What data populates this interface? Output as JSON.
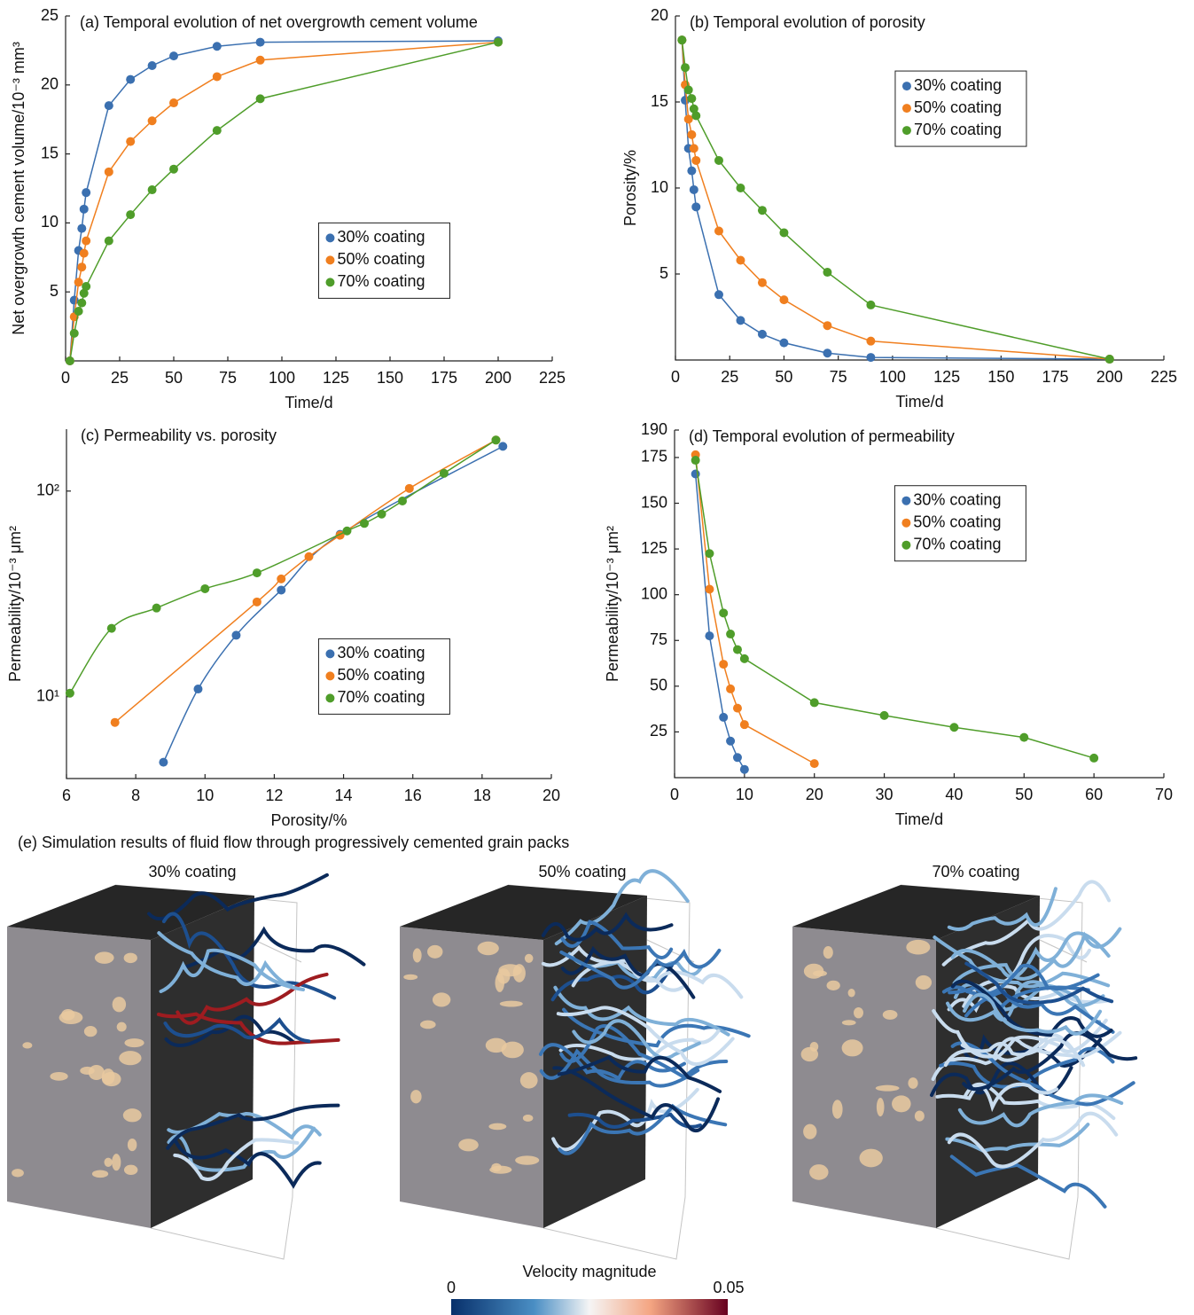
{
  "chart_data": [
    {
      "type": "line",
      "title": "(a) Temporal evolution of net overgrowth cement volume",
      "x_label": "Time/d",
      "y_label": "Net overgrowth cement volume/10⁻³ mm³",
      "x": [
        2,
        4,
        6,
        7.5,
        8.5,
        9.5,
        20,
        30,
        40,
        50,
        70,
        90,
        200
      ],
      "series": [
        {
          "name": "30% coating",
          "color": "#3b70b0",
          "values": [
            0,
            4.4,
            8.0,
            9.6,
            11.0,
            12.2,
            18.5,
            20.4,
            21.4,
            22.1,
            22.8,
            23.1,
            23.2
          ]
        },
        {
          "name": "50% coating",
          "color": "#f07f1f",
          "values": [
            0,
            3.2,
            5.7,
            6.8,
            7.8,
            8.7,
            13.7,
            15.9,
            17.4,
            18.7,
            20.6,
            21.8,
            23.1
          ]
        },
        {
          "name": "70% coating",
          "color": "#4f9d2a",
          "values": [
            0,
            2.0,
            3.6,
            4.2,
            4.9,
            5.4,
            8.7,
            10.6,
            12.4,
            13.9,
            16.7,
            19.0,
            23.1
          ]
        }
      ],
      "xlim": [
        0,
        225
      ],
      "xticks": [
        0,
        25,
        50,
        75,
        100,
        125,
        150,
        175,
        200,
        225
      ],
      "ylim": [
        0,
        25
      ],
      "yticks": [
        5,
        10,
        15,
        20,
        25
      ],
      "legend": "lower center"
    },
    {
      "type": "line",
      "title": "(b) Temporal evolution of porosity",
      "x_label": "Time/d",
      "y_label": "Porosity/%",
      "x": [
        3,
        4.5,
        6,
        7.5,
        8.5,
        9.5,
        20,
        30,
        40,
        50,
        70,
        90,
        200
      ],
      "series": [
        {
          "name": "30% coating",
          "color": "#3b70b0",
          "values": [
            18.6,
            15.1,
            12.3,
            11.0,
            9.9,
            8.9,
            3.8,
            2.3,
            1.5,
            1.0,
            0.4,
            0.15,
            0.05
          ]
        },
        {
          "name": "50% coating",
          "color": "#f07f1f",
          "values": [
            18.6,
            16.0,
            14.0,
            13.1,
            12.3,
            11.6,
            7.5,
            5.8,
            4.5,
            3.5,
            2.0,
            1.1,
            0.05
          ]
        },
        {
          "name": "70% coating",
          "color": "#4f9d2a",
          "values": [
            18.6,
            17.0,
            15.7,
            15.2,
            14.6,
            14.2,
            11.6,
            10.0,
            8.7,
            7.4,
            5.1,
            3.2,
            0.05
          ]
        }
      ],
      "xlim": [
        0,
        225
      ],
      "xticks": [
        0,
        25,
        50,
        75,
        100,
        125,
        150,
        175,
        200,
        225
      ],
      "ylim": [
        0,
        20
      ],
      "yticks": [
        5,
        10,
        15,
        20
      ],
      "legend": "upper center"
    },
    {
      "type": "line",
      "title": "(c) Permeability vs. porosity",
      "x_label": "Porosity/%",
      "y_label": "Permeability/10⁻³ μm²",
      "smooth": true,
      "ylog": true,
      "series": [
        {
          "name": "30% coating",
          "color": "#3b70b0",
          "x": [
            8.8,
            9.8,
            10.9,
            12.2,
            13.9,
            18.6
          ],
          "values": [
            4.8,
            10.9,
            19.9,
            33,
            61.6,
            165
          ]
        },
        {
          "name": "50% coating",
          "color": "#f07f1f",
          "x": [
            7.4,
            11.5,
            12.2,
            13.0,
            13.9,
            15.9,
            18.4
          ],
          "values": [
            7.5,
            28.9,
            37.4,
            48,
            61,
            103,
            177
          ]
        },
        {
          "name": "70% coating",
          "color": "#4f9d2a",
          "x": [
            6.1,
            7.3,
            8.6,
            10,
            11.5,
            14.1,
            14.6,
            15.1,
            15.7,
            16.9,
            18.4
          ],
          "values": [
            10.4,
            21.5,
            27,
            33.5,
            40,
            64,
            69.6,
            77.3,
            89.5,
            122,
            177
          ]
        }
      ],
      "xlim": [
        6,
        20
      ],
      "xticks": [
        6,
        8,
        10,
        12,
        14,
        16,
        18,
        20
      ],
      "ylim": [
        4,
        200
      ],
      "yticks": [
        {
          "value": 10,
          "label": "10¹"
        },
        {
          "value": 100,
          "label": "10²"
        }
      ],
      "legend": "lower center"
    },
    {
      "type": "line",
      "title": "(d) Temporal evolution of permeability",
      "x_label": "Time/d",
      "y_label": "Permeability/10⁻³ μm²",
      "series": [
        {
          "name": "30% coating",
          "color": "#3b70b0",
          "x": [
            3,
            5,
            7,
            8,
            9,
            10
          ],
          "values": [
            166,
            77.5,
            33,
            20,
            11,
            4.5
          ]
        },
        {
          "name": "50% coating",
          "color": "#f07f1f",
          "x": [
            3,
            5,
            7,
            8,
            9,
            10,
            20
          ],
          "values": [
            176.5,
            103,
            62,
            48.5,
            38,
            29,
            7.7
          ]
        },
        {
          "name": "70% coating",
          "color": "#4f9d2a",
          "x": [
            3,
            5,
            7,
            8,
            9,
            10,
            20,
            30,
            40,
            50,
            60
          ],
          "values": [
            173.5,
            122.5,
            90,
            78.5,
            70,
            65,
            41,
            34,
            27.5,
            22,
            10.7
          ]
        }
      ],
      "xlim": [
        0,
        70
      ],
      "xticks": [
        0,
        10,
        20,
        30,
        40,
        50,
        60,
        70
      ],
      "ylim": [
        0,
        190
      ],
      "yticks": [
        25,
        50,
        75,
        100,
        125,
        150,
        175,
        190
      ],
      "legend": "upper center"
    }
  ],
  "panel_e": {
    "title": "(e) Simulation results of fluid flow through progressively cemented grain packs",
    "panels": [
      "30% coating",
      "50% coating",
      "70% coating"
    ],
    "colorbar": {
      "label": "Velocity magnitude",
      "ticks": [
        0,
        0.05
      ]
    }
  }
}
